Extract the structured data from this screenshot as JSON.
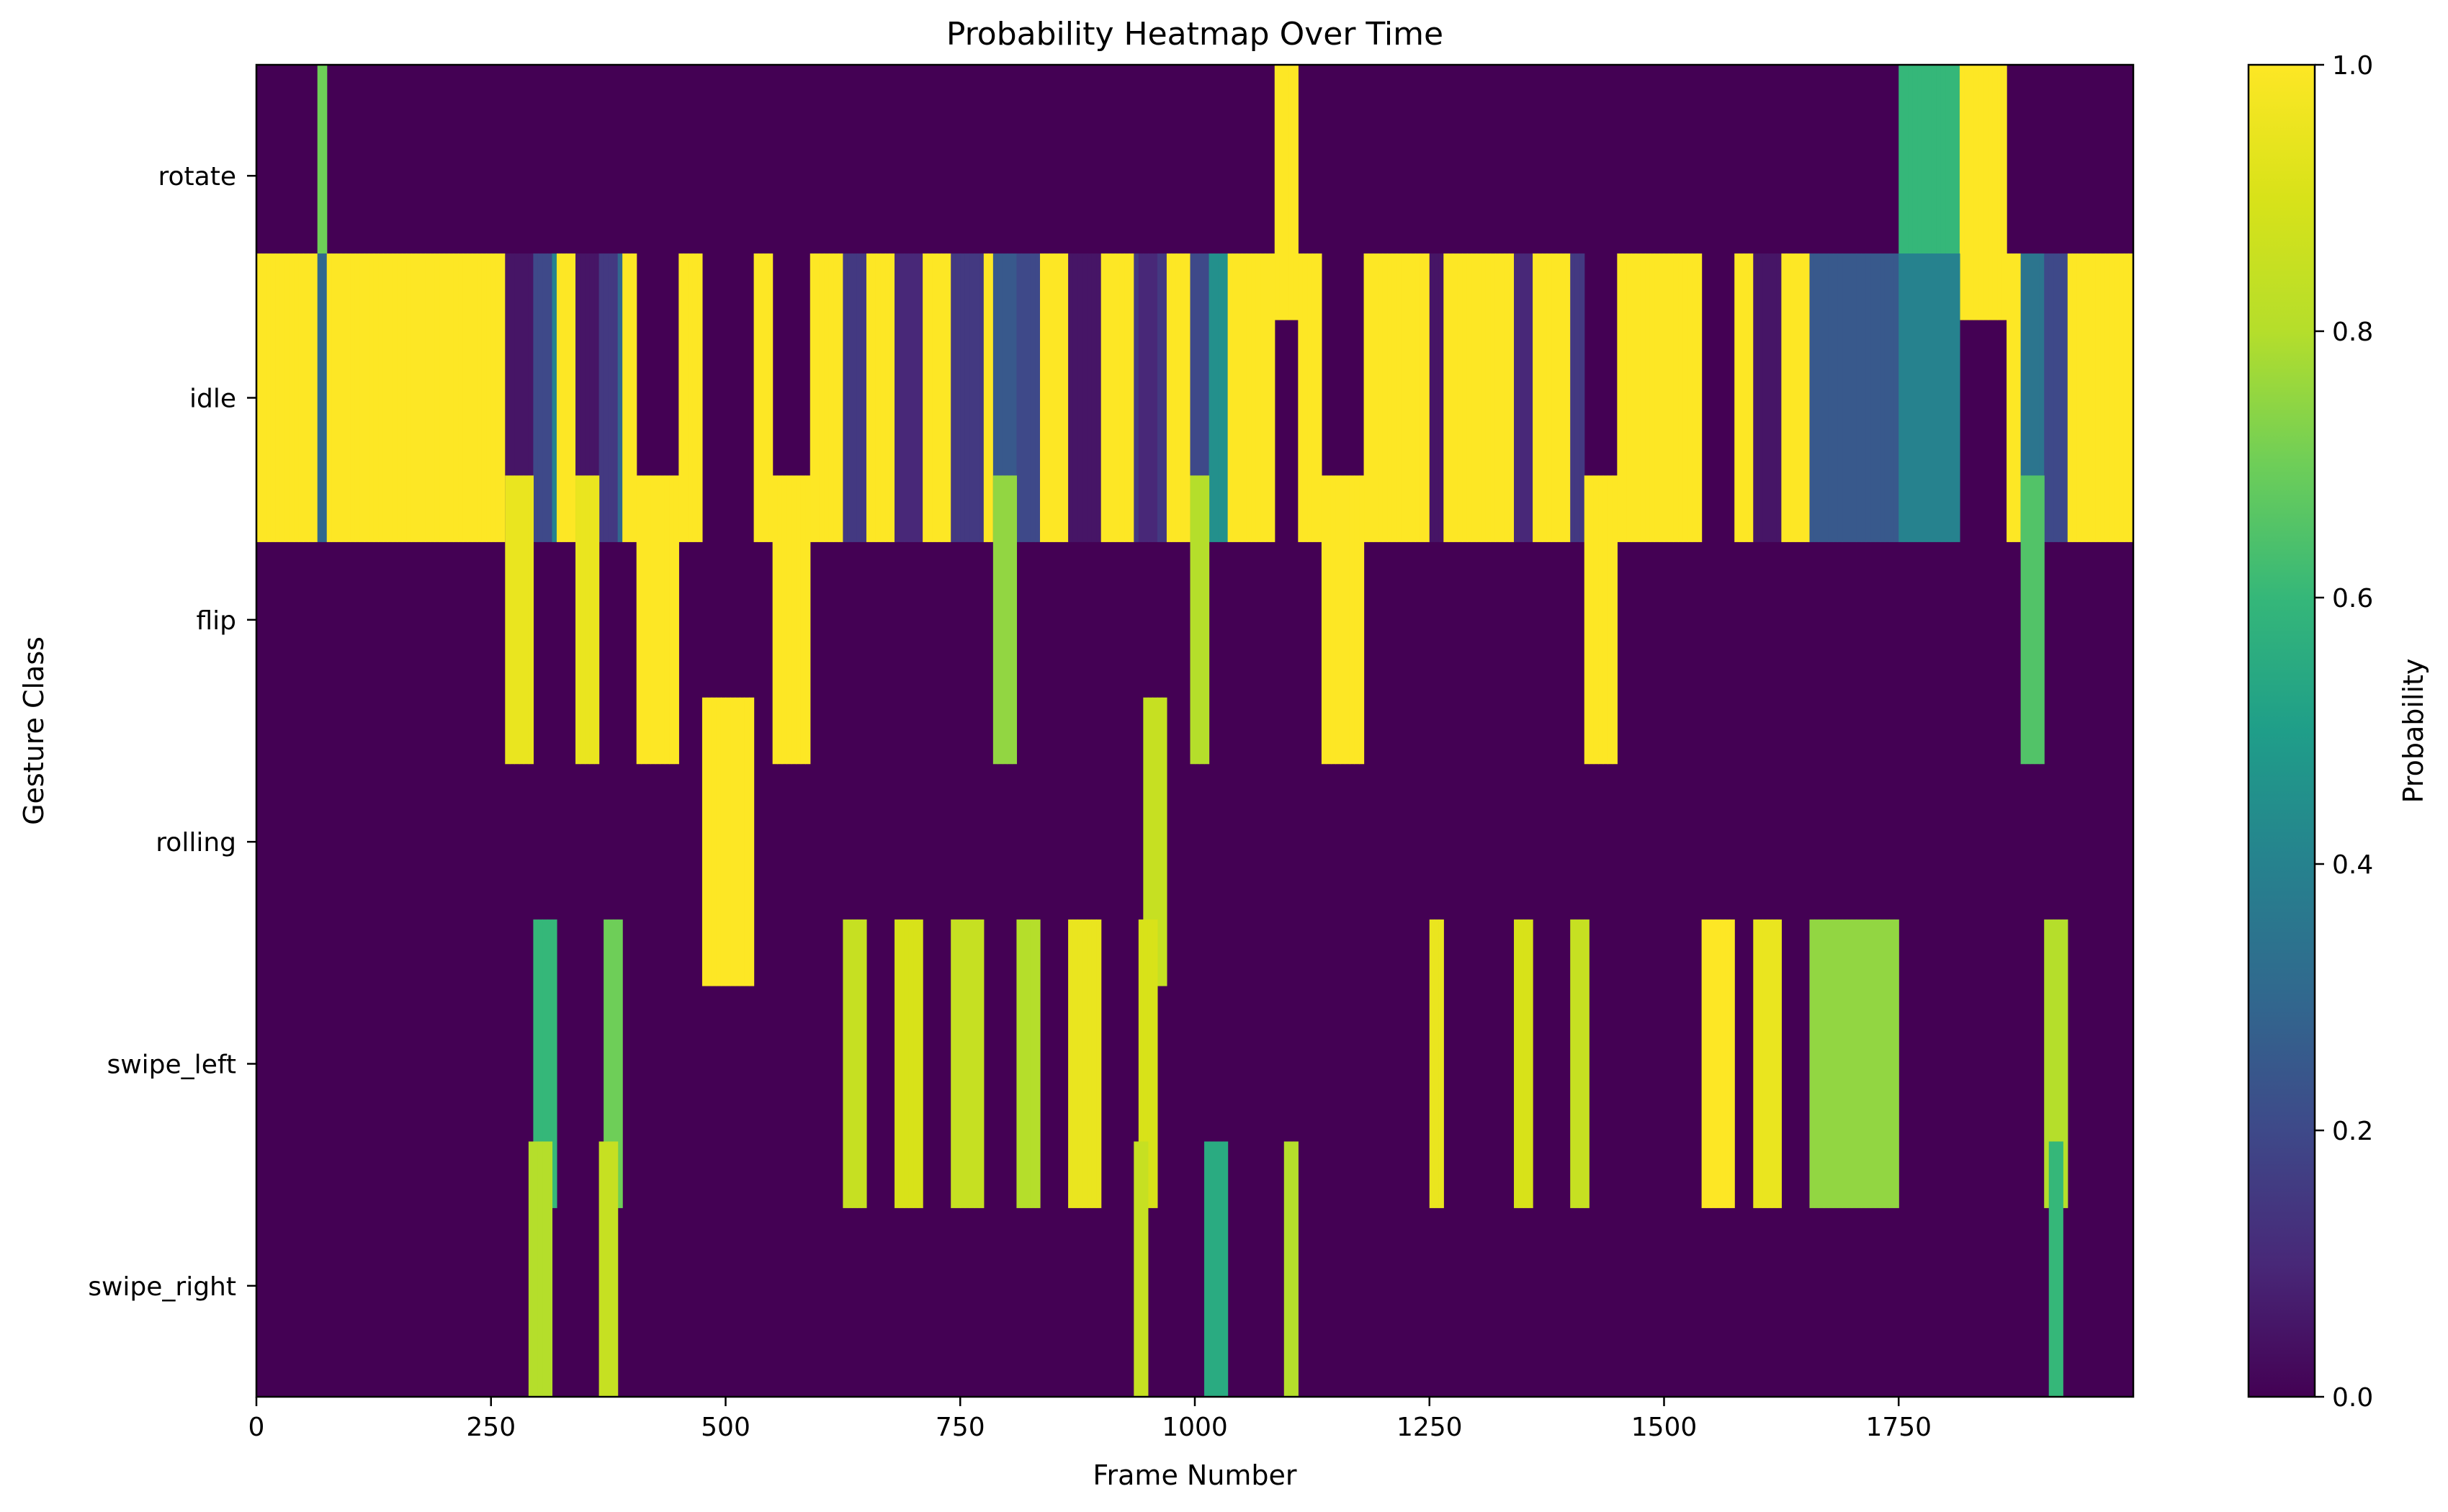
{
  "chart_data": {
    "type": "heatmap",
    "title": "Probability Heatmap Over Time",
    "xlabel": "Frame Number",
    "ylabel": "Gesture Class",
    "xlim": [
      0,
      2000
    ],
    "x_ticks": [
      0,
      250,
      500,
      750,
      1000,
      1250,
      1500,
      1750
    ],
    "x_tick_labels": [
      "0",
      "250",
      "500",
      "750",
      "1000",
      "1250",
      "1500",
      "1750"
    ],
    "y_categories": [
      "rotate",
      "idle",
      "flip",
      "rolling",
      "swipe_left",
      "swipe_right"
    ],
    "colorbar": {
      "label": "Probability",
      "range": [
        0.0,
        1.0
      ],
      "ticks": [
        0.0,
        0.2,
        0.4,
        0.6,
        0.8,
        1.0
      ],
      "tick_labels": [
        "0.0",
        "0.2",
        "0.4",
        "0.6",
        "0.8",
        "1.0"
      ],
      "colormap": "viridis"
    },
    "default_class": "idle",
    "events": [
      {
        "class": "rotate",
        "start": 68,
        "end": 71,
        "p": 0.7
      },
      {
        "class": "flip",
        "start": 270,
        "end": 292,
        "p": 0.95
      },
      {
        "class": "swipe_right",
        "start": 295,
        "end": 312,
        "p": 0.8
      },
      {
        "class": "swipe_left",
        "start": 300,
        "end": 318,
        "p": 0.6
      },
      {
        "class": "flip",
        "start": 342,
        "end": 364,
        "p": 0.95
      },
      {
        "class": "swipe_right",
        "start": 370,
        "end": 384,
        "p": 0.85
      },
      {
        "class": "swipe_left",
        "start": 375,
        "end": 388,
        "p": 0.7
      },
      {
        "class": "flip",
        "start": 410,
        "end": 445,
        "p": 1.0
      },
      {
        "class": "rolling",
        "start": 478,
        "end": 528,
        "p": 1.0
      },
      {
        "class": "flip",
        "start": 553,
        "end": 585,
        "p": 1.0
      },
      {
        "class": "swipe_left",
        "start": 628,
        "end": 648,
        "p": 0.85
      },
      {
        "class": "swipe_left",
        "start": 685,
        "end": 705,
        "p": 0.9
      },
      {
        "class": "swipe_left",
        "start": 745,
        "end": 770,
        "p": 0.85
      },
      {
        "class": "flip",
        "start": 790,
        "end": 805,
        "p": 0.75
      },
      {
        "class": "swipe_left",
        "start": 815,
        "end": 832,
        "p": 0.8
      },
      {
        "class": "swipe_left",
        "start": 870,
        "end": 895,
        "p": 0.95
      },
      {
        "class": "swipe_right",
        "start": 938,
        "end": 948,
        "p": 0.85
      },
      {
        "class": "swipe_left",
        "start": 945,
        "end": 958,
        "p": 0.9
      },
      {
        "class": "rolling",
        "start": 950,
        "end": 968,
        "p": 0.85
      },
      {
        "class": "flip",
        "start": 1000,
        "end": 1012,
        "p": 0.8
      },
      {
        "class": "swipe_right",
        "start": 1015,
        "end": 1030,
        "p": 0.55
      },
      {
        "class": "rotate",
        "start": 1090,
        "end": 1105,
        "p": 1.0
      },
      {
        "class": "swipe_right",
        "start": 1100,
        "end": 1106,
        "p": 0.8
      },
      {
        "class": "flip",
        "start": 1140,
        "end": 1178,
        "p": 1.0
      },
      {
        "class": "swipe_left",
        "start": 1252,
        "end": 1262,
        "p": 0.95
      },
      {
        "class": "swipe_left",
        "start": 1345,
        "end": 1355,
        "p": 0.9
      },
      {
        "class": "swipe_left",
        "start": 1405,
        "end": 1415,
        "p": 0.85
      },
      {
        "class": "flip",
        "start": 1420,
        "end": 1448,
        "p": 1.0
      },
      {
        "class": "swipe_left",
        "start": 1545,
        "end": 1570,
        "p": 1.0
      },
      {
        "class": "swipe_left",
        "start": 1600,
        "end": 1620,
        "p": 0.95
      },
      {
        "class": "swipe_left",
        "start": 1660,
        "end": 1745,
        "p": 0.75
      },
      {
        "class": "rotate",
        "start": 1755,
        "end": 1820,
        "p": 0.6
      },
      {
        "class": "rotate",
        "start": 1820,
        "end": 1862,
        "p": 1.0
      },
      {
        "class": "flip",
        "start": 1885,
        "end": 1900,
        "p": 0.65
      },
      {
        "class": "swipe_left",
        "start": 1910,
        "end": 1925,
        "p": 0.8
      },
      {
        "class": "swipe_right",
        "start": 1912,
        "end": 1920,
        "p": 0.6
      }
    ]
  }
}
